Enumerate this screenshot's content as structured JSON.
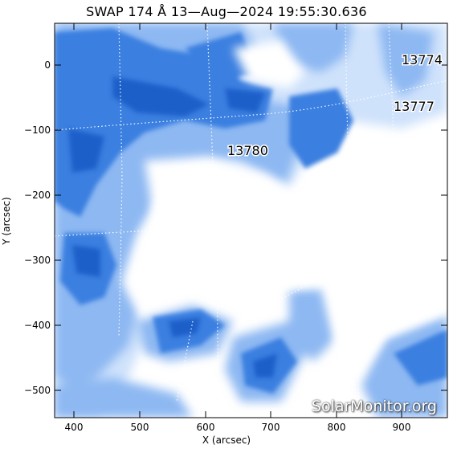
{
  "title": "SWAP 174 Å 13—Aug—2024 19:55:30.636",
  "xlabel": "X (arcsec)",
  "ylabel": "Y (arcsec)",
  "watermark": "SolarMonitor.org",
  "x_ticks": [
    "400",
    "500",
    "600",
    "700",
    "800",
    "900"
  ],
  "y_ticks": [
    "0",
    "−100",
    "−200",
    "−300",
    "−400",
    "−500"
  ],
  "regions": [
    "13774",
    "13777",
    "13780"
  ],
  "colors": {
    "deep": "#1f5fc9",
    "mid": "#3a7fe0",
    "light": "#8db8f2",
    "pale": "#cfe2fb",
    "bg": "#ffffff"
  }
}
